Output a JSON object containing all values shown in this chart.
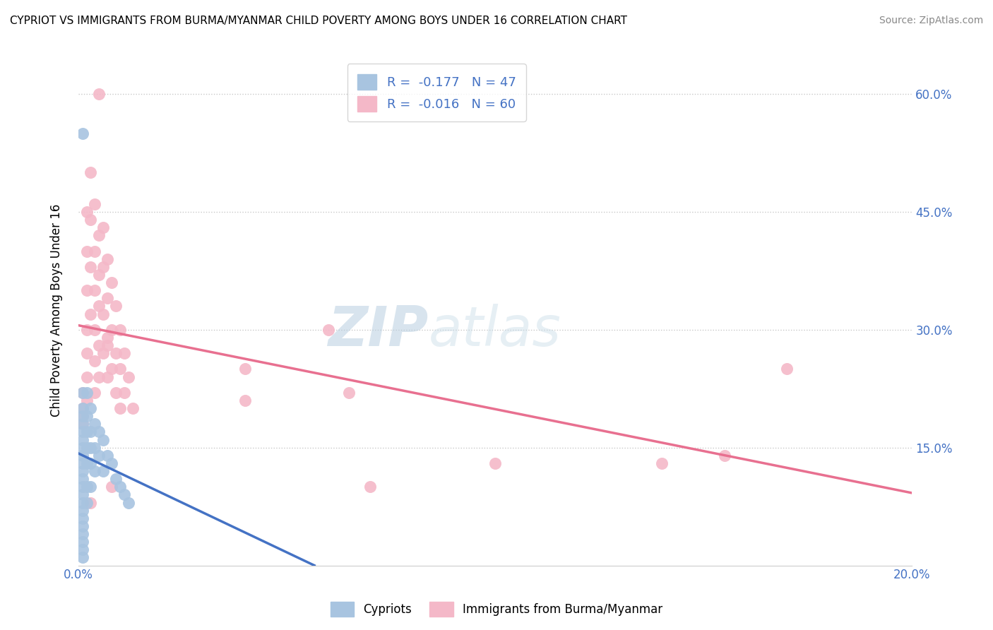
{
  "title": "CYPRIOT VS IMMIGRANTS FROM BURMA/MYANMAR CHILD POVERTY AMONG BOYS UNDER 16 CORRELATION CHART",
  "source": "Source: ZipAtlas.com",
  "ylabel": "Child Poverty Among Boys Under 16",
  "xlim": [
    0.0,
    0.2
  ],
  "ylim": [
    0.0,
    0.65
  ],
  "x_ticks": [
    0.0,
    0.05,
    0.1,
    0.15,
    0.2
  ],
  "x_tick_labels": [
    "0.0%",
    "",
    "",
    "",
    "20.0%"
  ],
  "y_ticks": [
    0.0,
    0.15,
    0.3,
    0.45,
    0.6
  ],
  "y_tick_labels": [
    "",
    "15.0%",
    "30.0%",
    "45.0%",
    "60.0%"
  ],
  "cypriot_R": -0.177,
  "cypriot_N": 47,
  "burma_R": -0.016,
  "burma_N": 60,
  "cypriot_color": "#a8c4e0",
  "burma_color": "#f4b8c8",
  "cypriot_line_color": "#4472c4",
  "burma_line_color": "#e87090",
  "legend_label_cypriot": "Cypriots",
  "legend_label_burma": "Immigrants from Burma/Myanmar",
  "watermark_zip": "ZIP",
  "watermark_atlas": "atlas",
  "cypriot_x": [
    0.001,
    0.001,
    0.001,
    0.001,
    0.001,
    0.001,
    0.001,
    0.001,
    0.001,
    0.001,
    0.001,
    0.001,
    0.001,
    0.001,
    0.001,
    0.001,
    0.001,
    0.001,
    0.001,
    0.001,
    0.001,
    0.002,
    0.002,
    0.002,
    0.002,
    0.002,
    0.002,
    0.002,
    0.003,
    0.003,
    0.003,
    0.003,
    0.003,
    0.004,
    0.004,
    0.004,
    0.005,
    0.005,
    0.006,
    0.006,
    0.007,
    0.008,
    0.009,
    0.01,
    0.011,
    0.012,
    0.001
  ],
  "cypriot_y": [
    0.22,
    0.2,
    0.19,
    0.18,
    0.17,
    0.16,
    0.15,
    0.14,
    0.13,
    0.12,
    0.11,
    0.1,
    0.09,
    0.08,
    0.07,
    0.06,
    0.05,
    0.04,
    0.03,
    0.02,
    0.01,
    0.22,
    0.19,
    0.17,
    0.15,
    0.13,
    0.1,
    0.08,
    0.2,
    0.17,
    0.15,
    0.13,
    0.1,
    0.18,
    0.15,
    0.12,
    0.17,
    0.14,
    0.16,
    0.12,
    0.14,
    0.13,
    0.11,
    0.1,
    0.09,
    0.08,
    0.55
  ],
  "burma_x": [
    0.001,
    0.001,
    0.001,
    0.001,
    0.002,
    0.002,
    0.002,
    0.002,
    0.002,
    0.002,
    0.002,
    0.003,
    0.003,
    0.003,
    0.003,
    0.004,
    0.004,
    0.004,
    0.004,
    0.004,
    0.004,
    0.005,
    0.005,
    0.005,
    0.005,
    0.005,
    0.006,
    0.006,
    0.006,
    0.006,
    0.007,
    0.007,
    0.007,
    0.007,
    0.008,
    0.008,
    0.008,
    0.009,
    0.009,
    0.009,
    0.01,
    0.01,
    0.01,
    0.011,
    0.011,
    0.012,
    0.013,
    0.04,
    0.04,
    0.06,
    0.065,
    0.07,
    0.1,
    0.14,
    0.155,
    0.17,
    0.005,
    0.007,
    0.008,
    0.003
  ],
  "burma_y": [
    0.22,
    0.2,
    0.19,
    0.18,
    0.45,
    0.4,
    0.35,
    0.3,
    0.27,
    0.24,
    0.21,
    0.5,
    0.44,
    0.38,
    0.32,
    0.46,
    0.4,
    0.35,
    0.3,
    0.26,
    0.22,
    0.42,
    0.37,
    0.33,
    0.28,
    0.24,
    0.43,
    0.38,
    0.32,
    0.27,
    0.39,
    0.34,
    0.28,
    0.24,
    0.36,
    0.3,
    0.25,
    0.33,
    0.27,
    0.22,
    0.3,
    0.25,
    0.2,
    0.27,
    0.22,
    0.24,
    0.2,
    0.25,
    0.21,
    0.3,
    0.22,
    0.1,
    0.13,
    0.13,
    0.14,
    0.25,
    0.6,
    0.29,
    0.1,
    0.08
  ]
}
